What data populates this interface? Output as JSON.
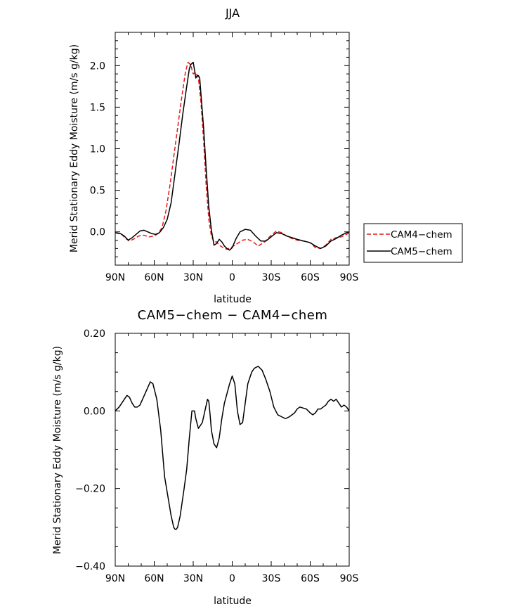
{
  "figure": {
    "panels": [
      {
        "id": "top",
        "title": "JJA",
        "xlabel": "latitude",
        "ylabel": "Merid Stationary Eddy Moisture (m/s g/kg)"
      },
      {
        "id": "bottom",
        "title": "CAM5−chem − CAM4−chem",
        "xlabel": "latitude",
        "ylabel": "Merid Stationary Eddy Moisture (m/s g/kg)"
      }
    ]
  },
  "legend": {
    "entries": [
      {
        "label": "CAM4−chem",
        "color": "#e41a1c",
        "dash": "dashed"
      },
      {
        "label": "CAM5−chem",
        "color": "#000000",
        "dash": "solid"
      }
    ]
  },
  "chart_data": [
    {
      "type": "line",
      "title": "JJA",
      "xlabel": "latitude",
      "ylabel": "Merid Stationary Eddy Moisture (m/s g/kg)",
      "xlim": [
        90,
        -90
      ],
      "ylim": [
        -0.4,
        2.4
      ],
      "x_ticks": [
        {
          "value": 90,
          "label": "90N"
        },
        {
          "value": 60,
          "label": "60N"
        },
        {
          "value": 30,
          "label": "30N"
        },
        {
          "value": 0,
          "label": "0"
        },
        {
          "value": -30,
          "label": "30S"
        },
        {
          "value": -60,
          "label": "60S"
        },
        {
          "value": -90,
          "label": "90S"
        }
      ],
      "y_ticks": [
        {
          "value": 0.0,
          "label": "0.0"
        },
        {
          "value": 0.5,
          "label": "0.5"
        },
        {
          "value": 1.0,
          "label": "1.0"
        },
        {
          "value": 1.5,
          "label": "1.5"
        },
        {
          "value": 2.0,
          "label": "2.0"
        }
      ],
      "legend_position": "right",
      "series": [
        {
          "name": "CAM4−chem",
          "color": "#e41a1c",
          "dash": "dashed",
          "x": [
            90,
            85,
            82,
            79,
            75,
            72,
            68,
            64,
            60,
            57,
            54,
            51,
            48,
            45,
            42,
            39,
            36,
            34,
            32,
            30,
            28,
            26,
            24,
            22,
            20,
            18,
            16,
            14,
            12,
            10,
            7,
            4,
            0,
            -4,
            -8,
            -12,
            -16,
            -20,
            -25,
            -30,
            -34,
            -38,
            -42,
            -46,
            -50,
            -55,
            -60,
            -64,
            -68,
            -72,
            -76,
            -80,
            -84,
            -88,
            -90
          ],
          "values": [
            -0.01,
            -0.03,
            -0.08,
            -0.11,
            -0.08,
            -0.05,
            -0.04,
            -0.06,
            -0.05,
            -0.02,
            0.05,
            0.25,
            0.55,
            0.9,
            1.25,
            1.6,
            1.92,
            2.04,
            2.01,
            1.9,
            1.92,
            1.85,
            1.55,
            1.1,
            0.55,
            0.15,
            -0.05,
            -0.12,
            -0.12,
            -0.16,
            -0.19,
            -0.21,
            -0.18,
            -0.14,
            -0.1,
            -0.09,
            -0.12,
            -0.17,
            -0.12,
            -0.04,
            0.01,
            -0.01,
            -0.05,
            -0.08,
            -0.1,
            -0.11,
            -0.13,
            -0.19,
            -0.2,
            -0.16,
            -0.09,
            -0.07,
            -0.06,
            -0.03,
            -0.01
          ]
        },
        {
          "name": "CAM5−chem",
          "color": "#000000",
          "dash": "solid",
          "x": [
            90,
            86,
            83,
            80,
            77,
            74,
            71,
            68,
            65,
            62,
            59,
            56,
            53,
            50,
            47,
            44,
            41,
            38,
            35,
            33,
            32,
            30,
            29,
            28,
            27,
            26,
            25,
            24,
            22,
            20,
            18,
            16,
            14,
            12,
            10,
            8,
            6,
            4,
            2,
            0,
            -3,
            -6,
            -10,
            -14,
            -18,
            -22,
            -26,
            -30,
            -34,
            -38,
            -42,
            -46,
            -50,
            -55,
            -60,
            -64,
            -68,
            -72,
            -76,
            -80,
            -84,
            -88,
            -90
          ],
          "values": [
            -0.01,
            -0.02,
            -0.05,
            -0.1,
            -0.07,
            -0.03,
            0.01,
            0.02,
            0.0,
            -0.02,
            -0.03,
            -0.01,
            0.05,
            0.15,
            0.35,
            0.7,
            1.05,
            1.42,
            1.75,
            1.96,
            2.01,
            2.04,
            1.95,
            1.85,
            1.88,
            1.88,
            1.85,
            1.65,
            1.25,
            0.75,
            0.3,
            0.02,
            -0.16,
            -0.14,
            -0.09,
            -0.12,
            -0.17,
            -0.2,
            -0.22,
            -0.19,
            -0.08,
            0.0,
            0.03,
            0.02,
            -0.05,
            -0.11,
            -0.11,
            -0.06,
            -0.01,
            -0.02,
            -0.05,
            -0.07,
            -0.09,
            -0.11,
            -0.13,
            -0.17,
            -0.2,
            -0.17,
            -0.11,
            -0.08,
            -0.04,
            -0.01,
            0.0
          ]
        }
      ]
    },
    {
      "type": "line",
      "title": "CAM5−chem − CAM4−chem",
      "xlabel": "latitude",
      "ylabel": "Merid Stationary Eddy Moisture (m/s g/kg)",
      "xlim": [
        90,
        -90
      ],
      "ylim": [
        -0.4,
        0.2
      ],
      "x_ticks": [
        {
          "value": 90,
          "label": "90N"
        },
        {
          "value": 60,
          "label": "60N"
        },
        {
          "value": 30,
          "label": "30N"
        },
        {
          "value": 0,
          "label": "0"
        },
        {
          "value": -30,
          "label": "30S"
        },
        {
          "value": -60,
          "label": "60S"
        },
        {
          "value": -90,
          "label": "90S"
        }
      ],
      "y_ticks": [
        {
          "value": -0.4,
          "label": "−0.40"
        },
        {
          "value": -0.2,
          "label": "−0.20"
        },
        {
          "value": 0.0,
          "label": "0.00"
        },
        {
          "value": 0.2,
          "label": "0.20"
        }
      ],
      "series": [
        {
          "name": "",
          "color": "#000000",
          "dash": "solid",
          "x": [
            90,
            87,
            83,
            81,
            79,
            77,
            75,
            73,
            71,
            69,
            67,
            65,
            63,
            61,
            58,
            55,
            52,
            49,
            47,
            45,
            44,
            43,
            42,
            40,
            37,
            35,
            33,
            31,
            30,
            29,
            28,
            26,
            25,
            23,
            21,
            19,
            18,
            17,
            16,
            14,
            12,
            10,
            8,
            6,
            4,
            2,
            1,
            0,
            -2,
            -4,
            -6,
            -8,
            -10,
            -12,
            -15,
            -17,
            -20,
            -23,
            -26,
            -29,
            -32,
            -35,
            -38,
            -41,
            -44,
            -46,
            -48,
            -50,
            -52,
            -54,
            -57,
            -60,
            -62,
            -64,
            -66,
            -68,
            -70,
            -72,
            -74,
            -76,
            -78,
            -80,
            -82,
            -84,
            -86,
            -88,
            -90
          ],
          "values": [
            0.0,
            0.01,
            0.03,
            0.04,
            0.035,
            0.02,
            0.01,
            0.01,
            0.015,
            0.03,
            0.045,
            0.06,
            0.075,
            0.07,
            0.03,
            -0.05,
            -0.17,
            -0.23,
            -0.27,
            -0.3,
            -0.305,
            -0.305,
            -0.3,
            -0.27,
            -0.2,
            -0.15,
            -0.07,
            0.0,
            0.0,
            0.0,
            -0.02,
            -0.045,
            -0.04,
            -0.03,
            0.0,
            0.03,
            0.025,
            -0.01,
            -0.05,
            -0.085,
            -0.095,
            -0.07,
            -0.02,
            0.02,
            0.045,
            0.07,
            0.08,
            0.09,
            0.07,
            0.0,
            -0.035,
            -0.03,
            0.02,
            0.07,
            0.1,
            0.11,
            0.115,
            0.105,
            0.08,
            0.05,
            0.01,
            -0.01,
            -0.015,
            -0.02,
            -0.015,
            -0.01,
            -0.005,
            0.005,
            0.01,
            0.008,
            0.005,
            -0.005,
            -0.01,
            -0.005,
            0.005,
            0.005,
            0.01,
            0.015,
            0.025,
            0.03,
            0.025,
            0.03,
            0.02,
            0.01,
            0.015,
            0.01,
            0.0
          ]
        }
      ]
    }
  ]
}
